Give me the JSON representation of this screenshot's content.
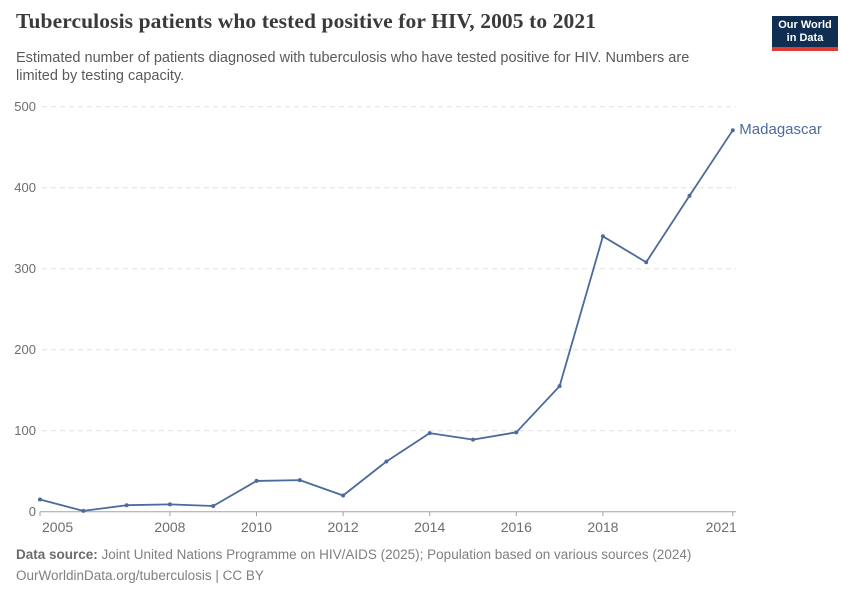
{
  "header": {
    "title": "Tuberculosis patients who tested positive for HIV, 2005 to 2021",
    "subtitle": "Estimated number of patients diagnosed with tuberculosis who have tested positive for HIV. Numbers are limited by testing capacity.",
    "logo": {
      "line1": "Our World",
      "line2": "in Data"
    }
  },
  "chart_data": {
    "type": "line",
    "title": "Tuberculosis patients who tested positive for HIV, 2005 to 2021",
    "x": [
      2005,
      2006,
      2007,
      2008,
      2009,
      2010,
      2011,
      2012,
      2013,
      2014,
      2015,
      2016,
      2017,
      2018,
      2019,
      2020,
      2021
    ],
    "series": [
      {
        "name": "Madagascar",
        "color": "#4c6a9c",
        "values": [
          15,
          1,
          8,
          9,
          7,
          38,
          39,
          20,
          62,
          97,
          89,
          98,
          155,
          340,
          308,
          390,
          471
        ]
      }
    ],
    "xlim": [
      2005,
      2021
    ],
    "ylim": [
      0,
      500
    ],
    "yticks": [
      0,
      100,
      200,
      300,
      400,
      500
    ],
    "xticks": [
      2005,
      2008,
      2010,
      2012,
      2014,
      2016,
      2018,
      2021
    ],
    "grid": "horizontal-dashed",
    "legend": "end-of-line-label",
    "xlabel": "",
    "ylabel": ""
  },
  "footer": {
    "source_label": "Data source:",
    "source_text": " Joint United Nations Programme on HIV/AIDS (2025); Population based on various sources (2024)",
    "license_line": "OurWorldinData.org/tuberculosis | CC BY"
  },
  "colors": {
    "line": "#4c6a9c",
    "grid": "#e0e0e0",
    "axis": "#a3a3a3",
    "tick_label": "#6e6e6e",
    "title": "#3a3a3a",
    "subtitle": "#5a5a5a",
    "footer": "#808080",
    "logo_bg": "#102d52",
    "logo_stripe": "#dc3c31"
  }
}
